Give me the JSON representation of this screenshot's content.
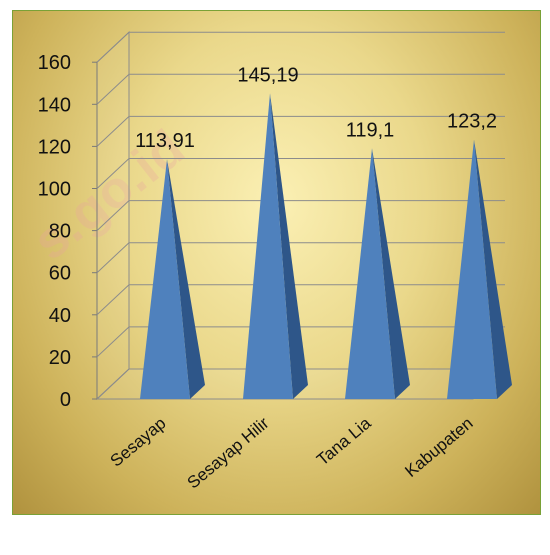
{
  "chart_data": {
    "type": "bar",
    "style": "3d-pyramid",
    "categories": [
      "Sesayap",
      "Sesayap Hilir",
      "Tana Lia",
      "Kabupaten"
    ],
    "values": [
      113.91,
      145.19,
      119.1,
      123.2
    ],
    "data_labels": [
      "113,91",
      "145,19",
      "119,1",
      "123,2"
    ],
    "yticks": [
      "0",
      "20",
      "40",
      "60",
      "80",
      "100",
      "120",
      "140",
      "160"
    ],
    "ylim": [
      0,
      160
    ],
    "title": "",
    "xlabel": "",
    "ylabel": "",
    "grid": true,
    "legend": "none",
    "colors": {
      "pyramid_light": "#4f81bd",
      "pyramid_dark": "#2e5689",
      "gridline": "#8c8c8c",
      "frame_border": "#7aa136"
    }
  },
  "watermark": "s.go.id"
}
